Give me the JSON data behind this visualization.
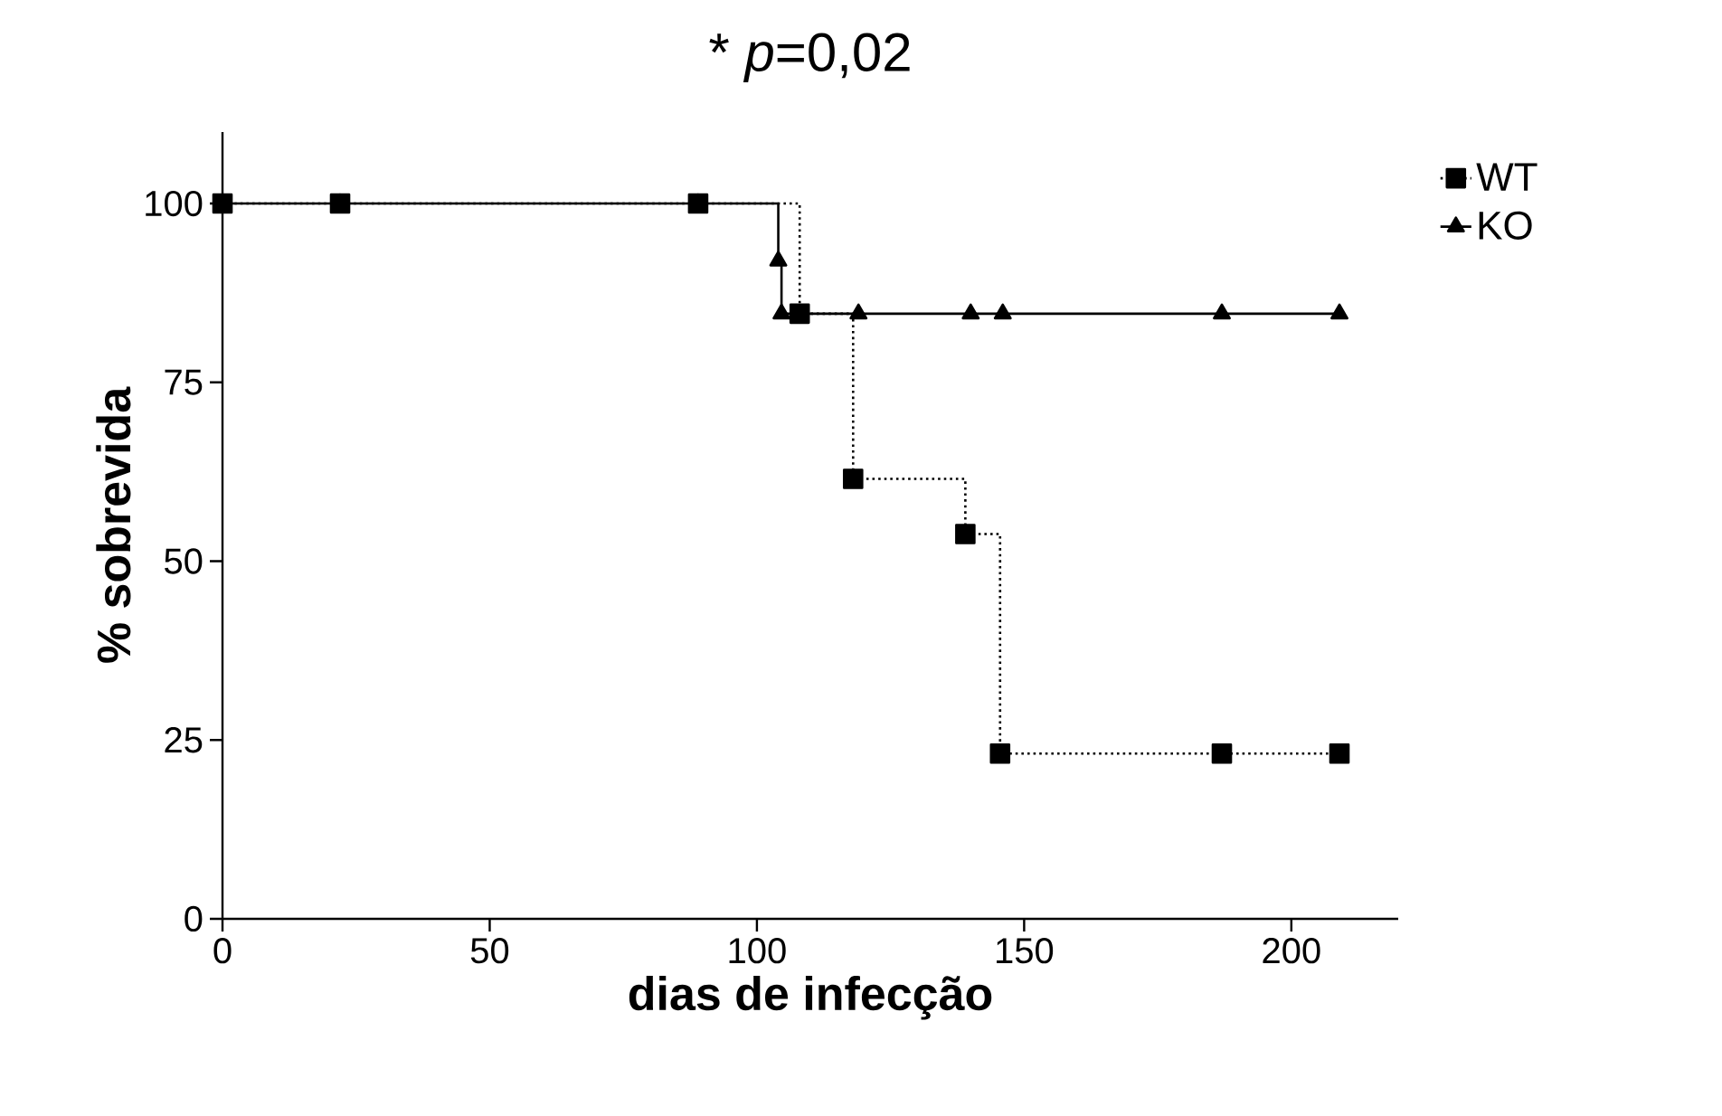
{
  "chart_data": {
    "type": "step",
    "title": "* *p*=0,02",
    "xlabel": "dias de infecção",
    "ylabel": "% sobrevida",
    "series": [
      {
        "name": "WT",
        "color": "#000000",
        "marker": "square",
        "line_style": "dotted",
        "x": [
          0,
          22,
          89,
          108,
          118,
          139,
          145.5,
          187,
          209
        ],
        "values": [
          100,
          100,
          100,
          84.6,
          61.5,
          53.8,
          23.1,
          23.1,
          23.1
        ]
      },
      {
        "name": "KO",
        "color": "#000000",
        "marker": "triangle",
        "line_style": "solid",
        "x": [
          0,
          22,
          89,
          104,
          104.6,
          119,
          140,
          146,
          187,
          209
        ],
        "values": [
          100,
          100,
          100,
          92,
          84.6,
          84.6,
          84.6,
          84.6,
          84.6,
          84.6
        ]
      }
    ],
    "xlim": [
      0,
      220
    ],
    "ylim": [
      0,
      110
    ],
    "xticks": [
      0,
      50,
      100,
      150,
      200
    ],
    "yticks": [
      0,
      25,
      50,
      75,
      100
    ],
    "grid": false,
    "legend": "top right"
  }
}
